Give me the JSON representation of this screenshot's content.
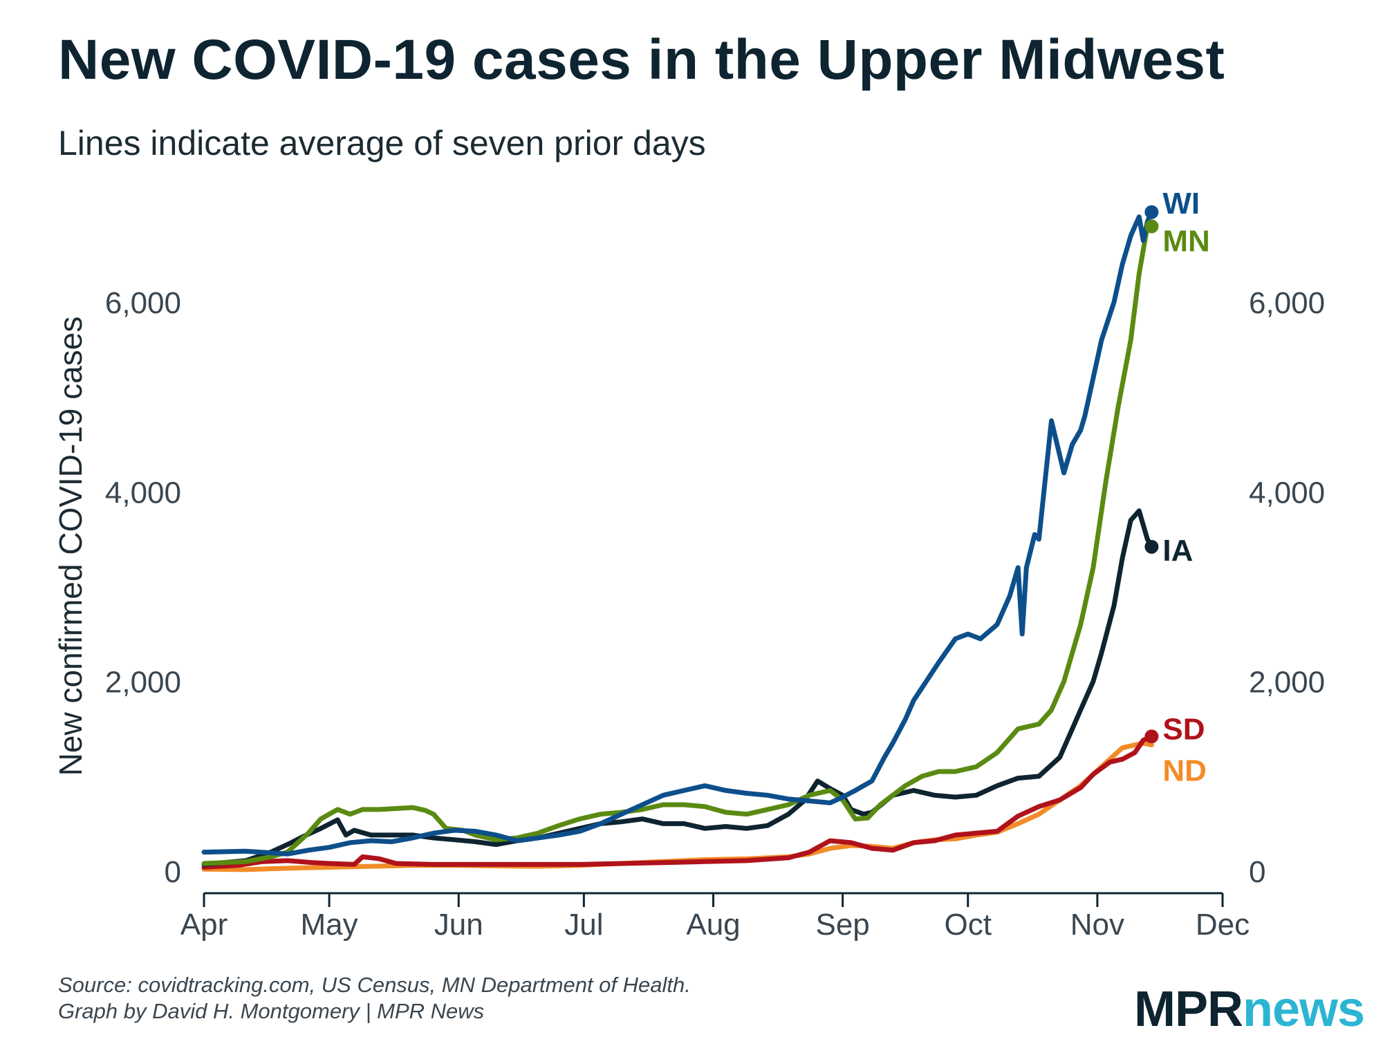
{
  "title": "New COVID-19 cases in the Upper Midwest",
  "subtitle": "Lines indicate average of seven prior days",
  "footer": {
    "source": "Source: covidtracking.com, US Census, MN Department of Health.",
    "credit": "Graph by David H. Montgomery | MPR News"
  },
  "logo": {
    "mpr": "MPR",
    "news": "news"
  },
  "chart_data": {
    "type": "line",
    "title": "New COVID-19 cases in the Upper Midwest",
    "subtitle": "Lines indicate average of seven prior days",
    "ylabel": "New confirmed COVID-19 cases",
    "xlabel": "",
    "x_unit": "days since Apr 1 (2020)",
    "xlim": [
      0,
      244
    ],
    "ylim": [
      0,
      7000
    ],
    "x_ticks": [
      {
        "label": "Apr",
        "x": 0
      },
      {
        "label": "May",
        "x": 30
      },
      {
        "label": "Jun",
        "x": 61
      },
      {
        "label": "Jul",
        "x": 91
      },
      {
        "label": "Aug",
        "x": 122
      },
      {
        "label": "Sep",
        "x": 153
      },
      {
        "label": "Oct",
        "x": 183
      },
      {
        "label": "Nov",
        "x": 214
      },
      {
        "label": "Dec",
        "x": 244
      }
    ],
    "y_ticks": [
      {
        "label": "0",
        "value": 0
      },
      {
        "label": "2,000",
        "value": 2000
      },
      {
        "label": "4,000",
        "value": 4000
      },
      {
        "label": "6,000",
        "value": 6000
      }
    ],
    "grid": false,
    "series": [
      {
        "name": "ND",
        "label": "ND",
        "color": "#f28c28",
        "x": [
          0,
          10,
          20,
          30,
          40,
          50,
          60,
          70,
          80,
          90,
          100,
          110,
          120,
          130,
          140,
          145,
          150,
          155,
          160,
          165,
          170,
          175,
          180,
          185,
          190,
          195,
          200,
          205,
          210,
          215,
          220,
          225,
          227
        ],
        "y": [
          20,
          15,
          30,
          40,
          50,
          60,
          60,
          55,
          50,
          60,
          80,
          100,
          120,
          130,
          150,
          180,
          240,
          270,
          260,
          240,
          300,
          330,
          340,
          380,
          410,
          500,
          600,
          750,
          900,
          1100,
          1300,
          1350,
          1330
        ]
      },
      {
        "name": "SD",
        "label": "SD",
        "color": "#b0121b",
        "x": [
          0,
          8,
          14,
          20,
          26,
          30,
          36,
          38,
          42,
          46,
          55,
          70,
          90,
          100,
          110,
          120,
          130,
          140,
          145,
          150,
          155,
          160,
          165,
          170,
          175,
          180,
          185,
          190,
          195,
          200,
          205,
          210,
          213,
          217,
          220,
          223,
          225,
          227
        ],
        "y": [
          40,
          60,
          100,
          110,
          90,
          80,
          70,
          150,
          130,
          80,
          70,
          70,
          70,
          80,
          90,
          100,
          110,
          140,
          200,
          320,
          300,
          240,
          220,
          300,
          320,
          380,
          400,
          420,
          580,
          680,
          750,
          880,
          1020,
          1150,
          1180,
          1250,
          1380,
          1420
        ]
      },
      {
        "name": "IA",
        "label": "IA",
        "color": "#0e2430",
        "x": [
          0,
          10,
          16,
          20,
          24,
          28,
          32,
          34,
          36,
          40,
          45,
          50,
          55,
          60,
          65,
          70,
          75,
          80,
          85,
          90,
          95,
          100,
          105,
          110,
          115,
          120,
          125,
          130,
          135,
          140,
          144,
          147,
          150,
          153,
          155,
          158,
          160,
          165,
          170,
          175,
          180,
          185,
          190,
          195,
          200,
          205,
          208,
          210,
          213,
          215,
          218,
          220,
          222,
          224,
          226,
          227
        ],
        "y": [
          70,
          110,
          200,
          280,
          370,
          450,
          540,
          380,
          430,
          380,
          380,
          380,
          350,
          330,
          310,
          280,
          320,
          350,
          400,
          450,
          500,
          520,
          550,
          500,
          500,
          450,
          470,
          450,
          480,
          600,
          750,
          950,
          870,
          800,
          650,
          600,
          620,
          800,
          850,
          800,
          780,
          800,
          900,
          980,
          1000,
          1200,
          1500,
          1700,
          2000,
          2300,
          2800,
          3300,
          3700,
          3800,
          3500,
          3420
        ]
      },
      {
        "name": "MN",
        "label": "MN",
        "color": "#5b8a12",
        "x": [
          0,
          10,
          16,
          20,
          25,
          28,
          30,
          32,
          35,
          38,
          42,
          46,
          50,
          53,
          55,
          58,
          62,
          65,
          70,
          75,
          80,
          85,
          90,
          95,
          100,
          105,
          110,
          115,
          120,
          125,
          130,
          135,
          140,
          145,
          150,
          153,
          156,
          159,
          162,
          165,
          168,
          172,
          176,
          180,
          185,
          190,
          195,
          200,
          203,
          206,
          210,
          213,
          216,
          219,
          222,
          224,
          226,
          227
        ],
        "y": [
          80,
          100,
          150,
          200,
          400,
          550,
          600,
          650,
          600,
          650,
          650,
          660,
          670,
          640,
          600,
          450,
          430,
          380,
          330,
          350,
          400,
          480,
          550,
          600,
          620,
          650,
          700,
          700,
          680,
          620,
          600,
          650,
          700,
          800,
          850,
          750,
          550,
          560,
          700,
          800,
          900,
          1000,
          1050,
          1050,
          1100,
          1250,
          1500,
          1550,
          1700,
          2000,
          2600,
          3200,
          4100,
          4900,
          5600,
          6300,
          6800,
          6800
        ]
      },
      {
        "name": "WI",
        "label": "WI",
        "color": "#0d4f8b",
        "x": [
          0,
          10,
          20,
          25,
          30,
          35,
          40,
          45,
          50,
          55,
          60,
          65,
          70,
          75,
          80,
          85,
          90,
          95,
          100,
          105,
          110,
          115,
          120,
          125,
          130,
          135,
          140,
          145,
          150,
          153,
          156,
          158,
          160,
          163,
          165,
          168,
          170,
          173,
          176,
          180,
          183,
          186,
          190,
          193,
          195,
          196,
          197,
          199,
          200,
          203,
          206,
          208,
          210,
          211,
          213,
          215,
          218,
          220,
          222,
          224,
          225,
          226,
          227
        ],
        "y": [
          200,
          210,
          180,
          220,
          250,
          300,
          320,
          310,
          350,
          400,
          430,
          420,
          380,
          320,
          350,
          380,
          420,
          500,
          600,
          700,
          800,
          850,
          900,
          850,
          820,
          800,
          760,
          740,
          720,
          780,
          850,
          900,
          950,
          1200,
          1350,
          1600,
          1800,
          2000,
          2200,
          2450,
          2500,
          2450,
          2600,
          2900,
          3200,
          2500,
          3200,
          3550,
          3500,
          4750,
          4200,
          4500,
          4650,
          4800,
          5200,
          5600,
          6000,
          6400,
          6700,
          6900,
          6650,
          6850,
          6950
        ]
      }
    ]
  }
}
